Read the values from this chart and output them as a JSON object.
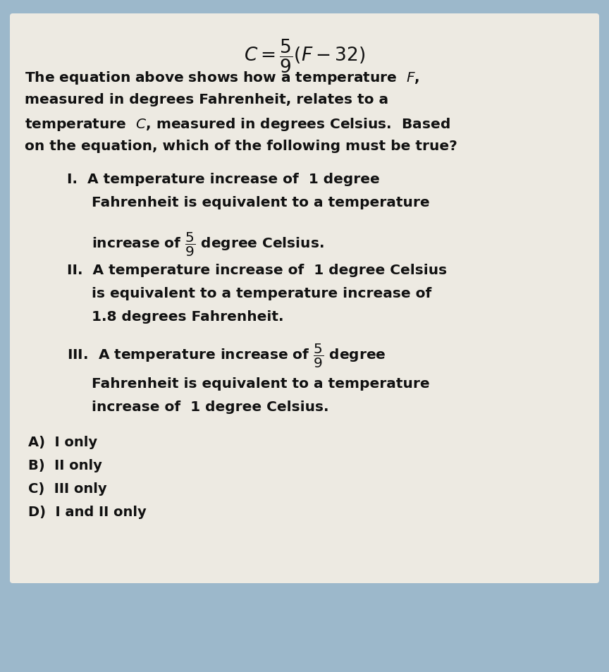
{
  "background_color": "#9cb8cb",
  "card_color": "#edeae2",
  "text_color": "#111111",
  "font_size_formula": 19,
  "font_size_text": 14.5,
  "font_size_answers": 14.0,
  "title_formula": "$C = \\dfrac{5}{9}(F - 32)$",
  "para_line1": "The equation above shows how a temperature  $F$,",
  "para_line2": "measured in degrees Fahrenheit, relates to a",
  "para_line3": "temperature  $C$, measured in degrees Celsius.  Based",
  "para_line4": "on the equation, which of the following must be true?",
  "I_line1": "I.  A temperature increase of  1 degree",
  "I_line2": "Fahrenheit is equivalent to a temperature",
  "I_line3": "increase of $\\dfrac{5}{9}$ degree Celsius.",
  "II_line1": "II.  A temperature increase of  1 degree Celsius",
  "II_line2": "is equivalent to a temperature increase of",
  "II_line3": "1.8 degrees Fahrenheit.",
  "III_line1": "III.  A temperature increase of $\\dfrac{5}{9}$ degree",
  "III_line2": "Fahrenheit is equivalent to a temperature",
  "III_line3": "increase of  1 degree Celsius.",
  "ans_A": "A)  I only",
  "ans_B": "B)  II only",
  "ans_C": "C)  III only",
  "ans_D": "D)  I and II only"
}
